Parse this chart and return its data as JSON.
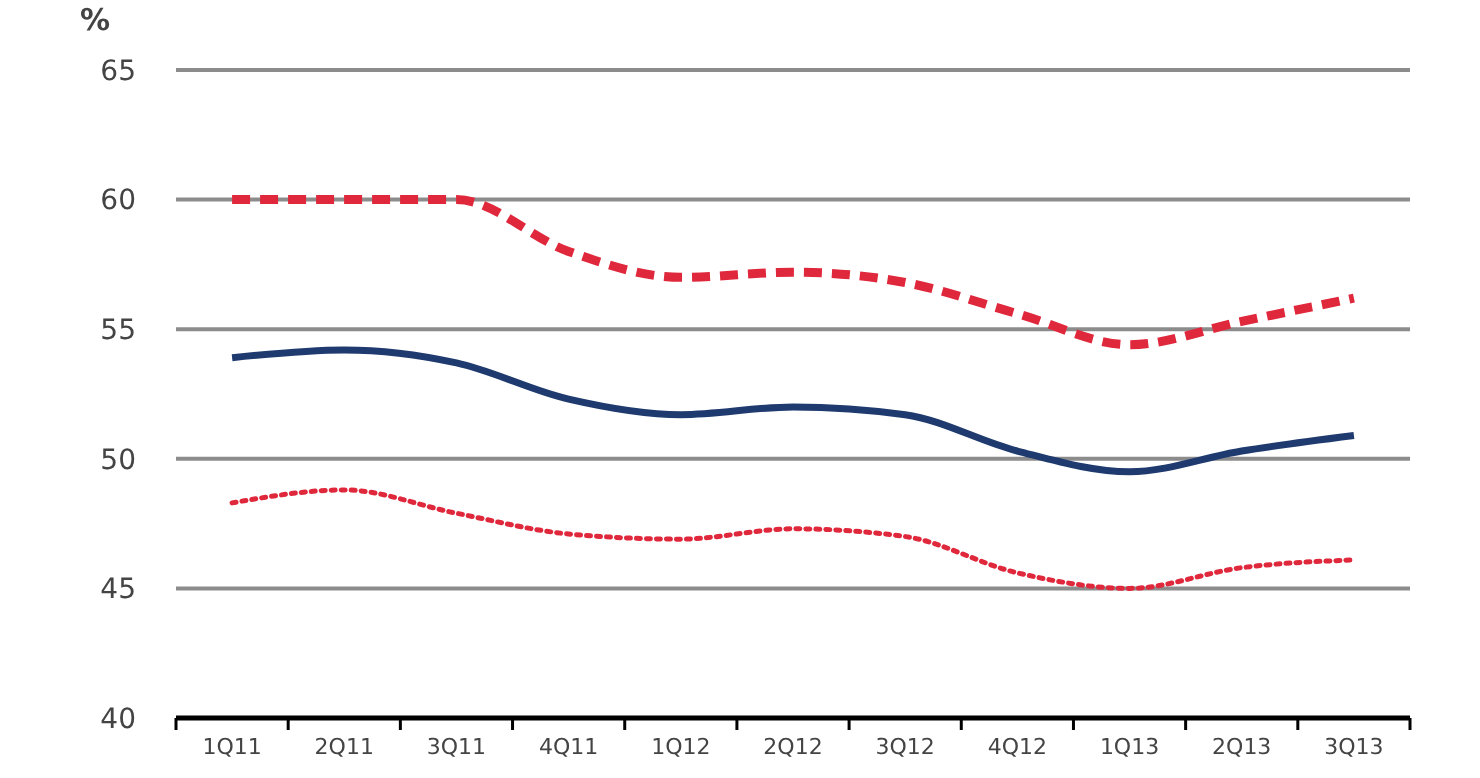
{
  "chart_data": {
    "type": "line",
    "ylabel": "%",
    "categories": [
      "1Q11",
      "2Q11",
      "3Q11",
      "4Q11",
      "1Q12",
      "2Q12",
      "3Q12",
      "4Q12",
      "1Q13",
      "2Q13",
      "3Q13"
    ],
    "series": [
      {
        "color": "#e0283c",
        "line_style": "dashed",
        "values": [
          60,
          60,
          60,
          58,
          57,
          57.2,
          56.8,
          55.6,
          54.4,
          55.3,
          56.2
        ]
      },
      {
        "color": "#1f3a6e",
        "line_style": "solid",
        "values": [
          53.9,
          54.2,
          53.7,
          52.3,
          51.7,
          52,
          51.7,
          50.3,
          49.5,
          50.3,
          50.9
        ]
      },
      {
        "color": "#e0283c",
        "line_style": "dotted",
        "values": [
          48.3,
          48.8,
          47.9,
          47.1,
          46.9,
          47.3,
          47,
          45.6,
          45,
          45.8,
          46.1
        ]
      }
    ],
    "ylim": [
      40,
      65
    ],
    "yticks": [
      40,
      45,
      50,
      55,
      60,
      65
    ],
    "grid": "y"
  }
}
